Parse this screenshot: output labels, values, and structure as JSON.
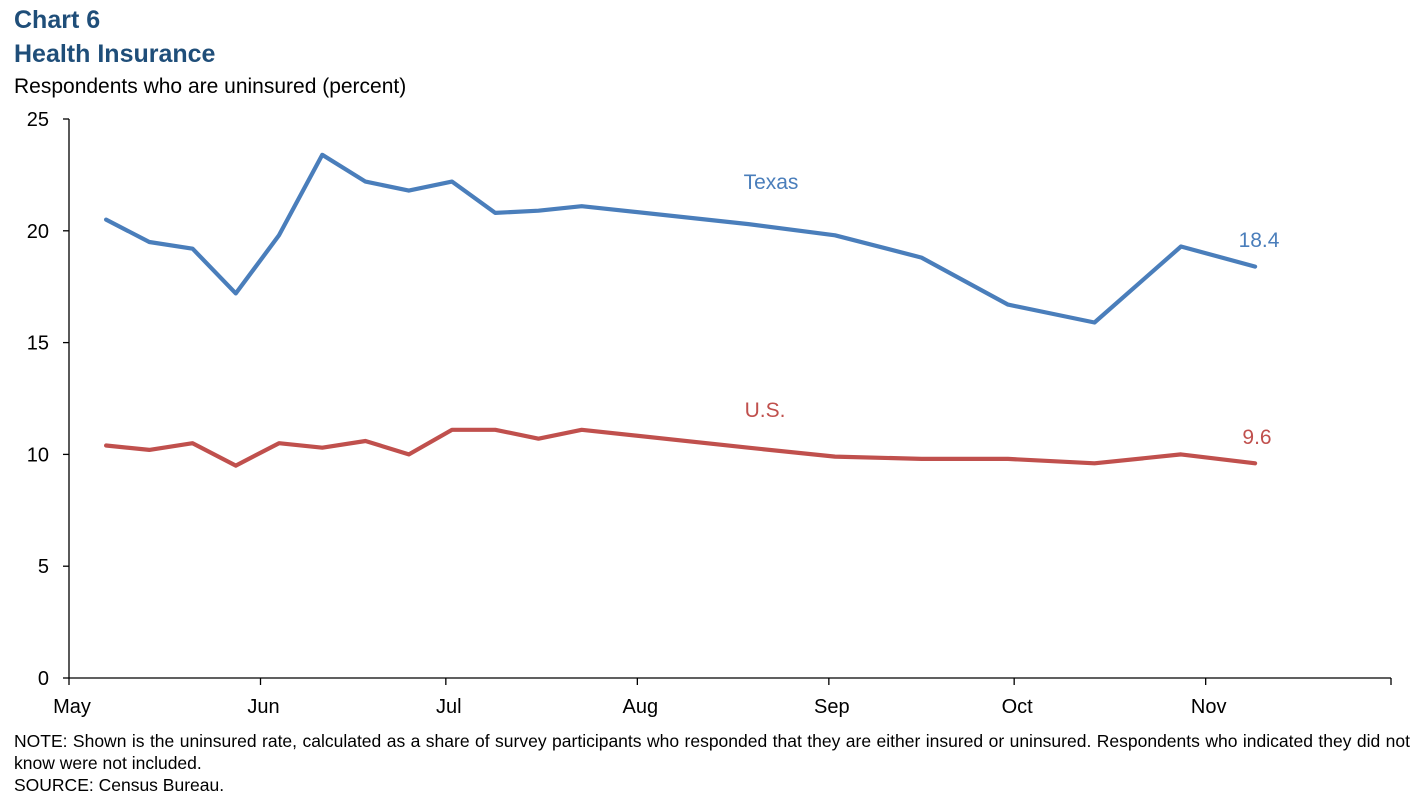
{
  "header": {
    "chart_number": "Chart 6",
    "title": "Health Insurance",
    "subtitle": "Respondents who are uninsured (percent)"
  },
  "colors": {
    "texas": "#4a7ebb",
    "us": "#c0504d",
    "title": "#1f4e79"
  },
  "chart_data": {
    "type": "line",
    "title": "Health Insurance",
    "ylabel": "Respondents who are uninsured (percent)",
    "ylim": [
      0,
      25
    ],
    "yticks": [
      "0",
      "5",
      "10",
      "15",
      "20",
      "25"
    ],
    "xlim": [
      "2020-05-01",
      "2020-12-01"
    ],
    "xticks": [
      {
        "date": "2020-05-01",
        "label": "May"
      },
      {
        "date": "2020-06-01",
        "label": "Jun"
      },
      {
        "date": "2020-07-01",
        "label": "Jul"
      },
      {
        "date": "2020-08-01",
        "label": "Aug"
      },
      {
        "date": "2020-09-01",
        "label": "Sep"
      },
      {
        "date": "2020-10-01",
        "label": "Oct"
      },
      {
        "date": "2020-11-01",
        "label": "Nov"
      }
    ],
    "x": [
      "2020-05-07",
      "2020-05-14",
      "2020-05-21",
      "2020-05-28",
      "2020-06-04",
      "2020-06-11",
      "2020-06-18",
      "2020-06-25",
      "2020-07-02",
      "2020-07-09",
      "2020-07-16",
      "2020-07-23",
      "2020-08-19",
      "2020-09-02",
      "2020-09-16",
      "2020-09-30",
      "2020-10-14",
      "2020-10-28",
      "2020-11-09"
    ],
    "series": [
      {
        "name": "Texas",
        "color": "#4a7ebb",
        "values": [
          20.5,
          19.5,
          19.2,
          17.2,
          19.8,
          23.4,
          22.2,
          21.8,
          22.2,
          20.8,
          20.9,
          21.1,
          20.3,
          19.8,
          18.8,
          16.7,
          15.9,
          19.3,
          18.4
        ],
        "end_label": "18.4"
      },
      {
        "name": "U.S.",
        "color": "#c0504d",
        "values": [
          10.4,
          10.2,
          10.5,
          9.5,
          10.5,
          10.3,
          10.6,
          10.0,
          11.1,
          11.1,
          10.7,
          11.1,
          10.3,
          9.9,
          9.8,
          9.8,
          9.6,
          10.0,
          9.6
        ],
        "end_label": "9.6"
      }
    ],
    "grid": false,
    "legend": "inline labels"
  },
  "footer": {
    "note": "NOTE: Shown is the uninsured rate, calculated as a share of survey participants who responded that they are either insured or uninsured. Respondents who indicated they did not know were not included.",
    "source": "SOURCE: Census Bureau."
  }
}
